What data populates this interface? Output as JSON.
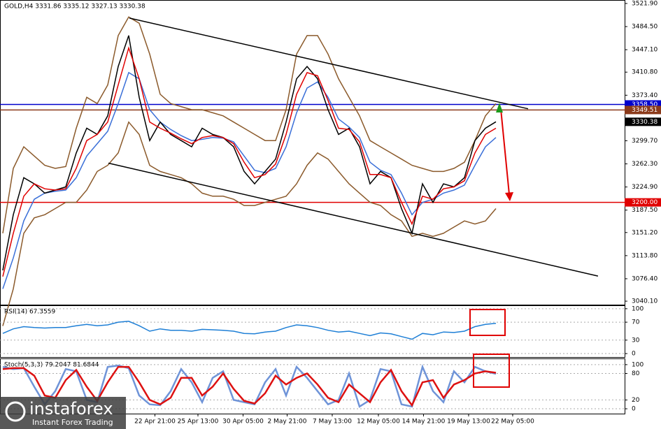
{
  "chart_data": [
    {
      "type": "line",
      "title": "GOLD,H4 3331.86 3335.12 3327.13 3330.38",
      "x": [
        0,
        1,
        2,
        3,
        4,
        5,
        6,
        7,
        8,
        9,
        10,
        11,
        12,
        13,
        14,
        15,
        16,
        17,
        18,
        19,
        20,
        21,
        22,
        23,
        24,
        25,
        26,
        27,
        28,
        29,
        30,
        31,
        32,
        33,
        34,
        35,
        36,
        37,
        38,
        39,
        40,
        41,
        42,
        43,
        44,
        45,
        46,
        47
      ],
      "xlim": [
        -0.267,
        59.27
      ],
      "ylim": [
        3034.5,
        3526.4
      ],
      "yticks": [
        {
          "value": 3521.9,
          "label": "3521.90"
        },
        {
          "value": 3484.5,
          "label": "3484.50"
        },
        {
          "value": 3447.1,
          "label": "3447.10"
        },
        {
          "value": 3410.8,
          "label": "3410.80"
        },
        {
          "value": 3373.4,
          "label": "3373.40"
        },
        {
          "value": 3299.7,
          "label": "3299.70"
        },
        {
          "value": 3262.3,
          "label": "3262.30"
        },
        {
          "value": 3224.9,
          "label": "3224.90"
        },
        {
          "value": 3187.5,
          "label": "3187.50"
        },
        {
          "value": 3151.2,
          "label": "3151.20"
        },
        {
          "value": 3113.8,
          "label": "3113.80"
        },
        {
          "value": 3076.4,
          "label": "3076.40"
        },
        {
          "value": 3040.1,
          "label": "3040.10"
        }
      ],
      "series": [
        {
          "color": "#8b5a2b",
          "values": [
            3150,
            3255,
            3290,
            3275,
            3260,
            3255,
            3258,
            3320,
            3370,
            3360,
            3390,
            3470,
            3500,
            3490,
            3440,
            3375,
            3360,
            3355,
            3350,
            3350,
            3345,
            3340,
            3330,
            3320,
            3310,
            3300,
            3300,
            3350,
            3440,
            3470,
            3470,
            3440,
            3400,
            3370,
            3340,
            3300,
            3290,
            3280,
            3270,
            3260,
            3255,
            3250,
            3250,
            3255,
            3265,
            3300,
            3340,
            3360
          ]
        },
        {
          "color": "#8b5a2b",
          "values": [
            3000,
            3060,
            3150,
            3175,
            3180,
            3190,
            3200,
            3200,
            3220,
            3250,
            3260,
            3280,
            3330,
            3310,
            3260,
            3250,
            3245,
            3240,
            3230,
            3215,
            3210,
            3210,
            3205,
            3195,
            3195,
            3200,
            3205,
            3210,
            3230,
            3260,
            3280,
            3270,
            3250,
            3230,
            3215,
            3200,
            3195,
            3180,
            3170,
            3145,
            3150,
            3145,
            3150,
            3160,
            3170,
            3165,
            3170,
            3190
          ]
        },
        {
          "color": "#3a6fd8",
          "values": [
            3060,
            3110,
            3170,
            3205,
            3215,
            3218,
            3220,
            3240,
            3275,
            3295,
            3315,
            3360,
            3410,
            3400,
            3350,
            3330,
            3318,
            3308,
            3300,
            3302,
            3305,
            3304,
            3298,
            3275,
            3252,
            3248,
            3255,
            3290,
            3345,
            3385,
            3395,
            3370,
            3335,
            3322,
            3305,
            3265,
            3252,
            3245,
            3215,
            3180,
            3200,
            3205,
            3215,
            3220,
            3228,
            3260,
            3290,
            3305
          ]
        },
        {
          "color": "#000000",
          "values": [
            3090,
            3180,
            3240,
            3230,
            3215,
            3220,
            3225,
            3280,
            3320,
            3310,
            3340,
            3420,
            3470,
            3370,
            3300,
            3330,
            3310,
            3300,
            3290,
            3320,
            3310,
            3305,
            3290,
            3250,
            3230,
            3250,
            3270,
            3330,
            3400,
            3420,
            3400,
            3350,
            3310,
            3320,
            3290,
            3230,
            3250,
            3240,
            3190,
            3150,
            3230,
            3200,
            3230,
            3225,
            3240,
            3300,
            3320,
            3330.38
          ]
        },
        {
          "color": "#e00000",
          "values": [
            3080,
            3150,
            3210,
            3230,
            3222,
            3220,
            3222,
            3255,
            3300,
            3310,
            3330,
            3390,
            3450,
            3400,
            3330,
            3320,
            3312,
            3303,
            3295,
            3305,
            3308,
            3305,
            3295,
            3265,
            3240,
            3245,
            3262,
            3310,
            3375,
            3410,
            3405,
            3365,
            3320,
            3318,
            3298,
            3245,
            3245,
            3240,
            3200,
            3165,
            3210,
            3205,
            3222,
            3225,
            3235,
            3280,
            3310,
            3320
          ]
        },
        {
          "color": "#000000",
          "x": [
            12.07,
            50.07
          ],
          "values": [
            3498.2,
            3351.5
          ]
        },
        {
          "color": "#000000",
          "x": [
            10.07,
            56.73
          ],
          "values": [
            3263.5,
            3080.7
          ]
        }
      ],
      "levels": [
        {
          "value": 3358.5,
          "label": "3358.50",
          "color": "#0000cc"
        },
        {
          "value": 3349.51,
          "label": "3349.51",
          "color": "#8b3a1a"
        },
        {
          "value": 3200,
          "label": "3200.00",
          "color": "#e00000"
        }
      ],
      "last_price": 3330.38
    },
    {
      "type": "line",
      "title": "RSI(14) 67.3559",
      "x": [
        0,
        1,
        2,
        3,
        4,
        5,
        6,
        7,
        8,
        9,
        10,
        11,
        12,
        13,
        14,
        15,
        16,
        17,
        18,
        19,
        20,
        21,
        22,
        23,
        24,
        25,
        26,
        27,
        28,
        29,
        30,
        31,
        32,
        33,
        34,
        35,
        36,
        37,
        38,
        39,
        40,
        41,
        42,
        43,
        44,
        45,
        46,
        47
      ],
      "xlim": [
        -0.267,
        59.27
      ],
      "ylim": [
        -7.7,
        106
      ],
      "yticks": [
        100,
        70,
        30,
        0
      ],
      "grid": true,
      "series": [
        {
          "color": "#1e7fd6",
          "values": [
            45,
            55,
            60,
            58,
            57,
            58,
            58,
            62,
            65,
            62,
            64,
            70,
            72,
            62,
            50,
            55,
            52,
            52,
            50,
            54,
            53,
            52,
            50,
            45,
            44,
            48,
            50,
            58,
            64,
            62,
            58,
            52,
            48,
            50,
            45,
            40,
            46,
            44,
            38,
            32,
            45,
            42,
            48,
            47,
            50,
            60,
            65,
            67.3559
          ]
        }
      ]
    },
    {
      "type": "line",
      "title": "Stoch(5,3,3) 79.2047 81.6844",
      "x": [
        0,
        1,
        2,
        3,
        4,
        5,
        6,
        7,
        8,
        9,
        10,
        11,
        12,
        13,
        14,
        15,
        16,
        17,
        18,
        19,
        20,
        21,
        22,
        23,
        24,
        25,
        26,
        27,
        28,
        29,
        30,
        31,
        32,
        33,
        34,
        35,
        36,
        37,
        38,
        39,
        40,
        41,
        42,
        43,
        44,
        45,
        46,
        47
      ],
      "xlim": [
        -0.267,
        59.27
      ],
      "ylim": [
        -11,
        112.5
      ],
      "yticks": [
        100,
        80,
        20,
        0
      ],
      "grid": true,
      "xticks": [
        {
          "value": 14.5,
          "label": "22 Apr 21:00"
        },
        {
          "value": 18.6,
          "label": "25 Apr 13:00"
        },
        {
          "value": 22.9,
          "label": "30 Apr 05:00"
        },
        {
          "value": 27.1,
          "label": "2 May 21:00"
        },
        {
          "value": 31.4,
          "label": "7 May 13:00"
        },
        {
          "value": 35.8,
          "label": "12 May 05:00"
        },
        {
          "value": 40.1,
          "label": "14 May 21:00"
        },
        {
          "value": 44.4,
          "label": "19 May 13:00"
        },
        {
          "value": 48.6,
          "label": "22 May 05:00"
        }
      ],
      "series": [
        {
          "color": "#6f94d8",
          "values": [
            95,
            90,
            92,
            50,
            10,
            40,
            90,
            85,
            20,
            15,
            95,
            98,
            92,
            30,
            10,
            8,
            40,
            90,
            60,
            15,
            70,
            85,
            20,
            15,
            10,
            60,
            90,
            30,
            95,
            70,
            40,
            10,
            20,
            80,
            5,
            20,
            90,
            85,
            10,
            5,
            95,
            40,
            15,
            85,
            60,
            95,
            85,
            79.2047
          ]
        },
        {
          "color": "#dd1111",
          "values": [
            90,
            92,
            92,
            75,
            30,
            25,
            65,
            88,
            50,
            18,
            60,
            95,
            95,
            60,
            20,
            10,
            25,
            70,
            70,
            30,
            50,
            80,
            45,
            18,
            12,
            35,
            75,
            55,
            70,
            80,
            55,
            25,
            15,
            55,
            35,
            15,
            60,
            88,
            40,
            8,
            60,
            65,
            25,
            55,
            65,
            80,
            85,
            81.6844
          ]
        }
      ]
    }
  ],
  "watermark": {
    "brand": "instaforex",
    "tagline": "Instant Forex Trading"
  }
}
